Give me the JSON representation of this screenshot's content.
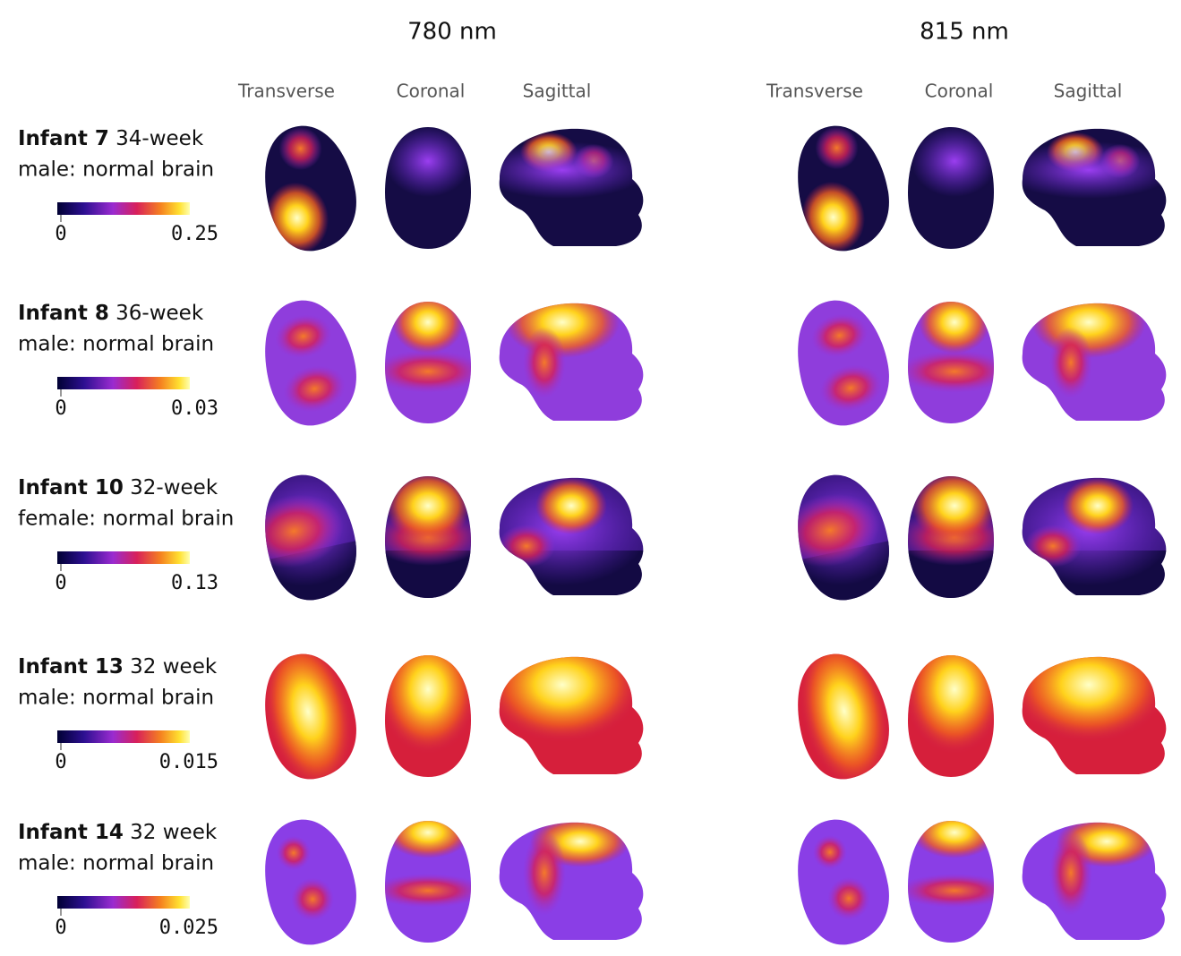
{
  "columns": [
    {
      "title": "780 nm",
      "views": [
        "Transverse",
        "Coronal",
        "Sagittal"
      ]
    },
    {
      "title": "815 nm",
      "views": [
        "Transverse",
        "Coronal",
        "Sagittal"
      ]
    }
  ],
  "rows": [
    {
      "name": "Infant 7",
      "age": "34-week",
      "description": "male: normal brain",
      "scale_min": "0",
      "scale_max": "0.25"
    },
    {
      "name": "Infant 8",
      "age": "36-week",
      "description": "male: normal brain",
      "scale_min": "0",
      "scale_max": "0.03"
    },
    {
      "name": "Infant 10",
      "age": "32-week",
      "description": "female: normal brain",
      "scale_min": "0",
      "scale_max": "0.13"
    },
    {
      "name": "Infant 13",
      "age": "32 week",
      "description": "male: normal brain",
      "scale_min": "0",
      "scale_max": "0.015"
    },
    {
      "name": "Infant 14",
      "age": "32 week",
      "description": "male: normal brain",
      "scale_min": "0",
      "scale_max": "0.025"
    }
  ]
}
